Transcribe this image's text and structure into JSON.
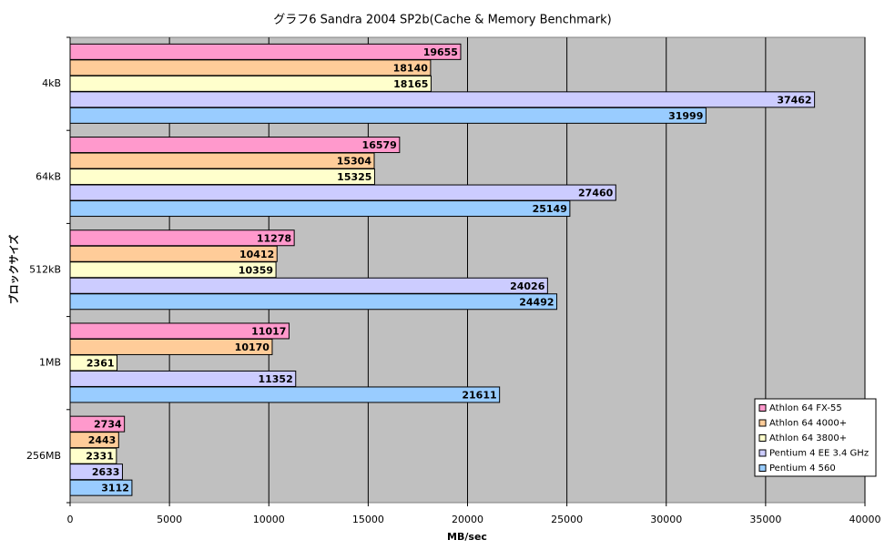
{
  "chart_data": {
    "type": "bar",
    "orientation": "horizontal",
    "title": "グラフ6  Sandra 2004 SP2b(Cache & Memory Benchmark)",
    "x_label": "MB/sec",
    "y_label": "ブロックサイズ",
    "categories": [
      "4kB",
      "64kB",
      "512kB",
      "1MB",
      "256MB"
    ],
    "series": [
      {
        "name": "Athlon 64 FX-55",
        "color": "#ff99cc",
        "values": [
          19655,
          16579,
          11278,
          11017,
          2734
        ]
      },
      {
        "name": "Athlon 64 4000+",
        "color": "#ffcc99",
        "values": [
          18140,
          15304,
          10412,
          10170,
          2443
        ]
      },
      {
        "name": "Athlon 64 3800+",
        "color": "#ffffcc",
        "values": [
          18165,
          15325,
          10359,
          2361,
          2331
        ]
      },
      {
        "name": "Pentium 4 EE 3.4 GHz",
        "color": "#ccccff",
        "values": [
          37462,
          27460,
          24026,
          11352,
          2633
        ]
      },
      {
        "name": "Pentium 4 560",
        "color": "#99ccff",
        "values": [
          31999,
          25149,
          24492,
          21611,
          3112
        ]
      }
    ],
    "xlim": [
      0,
      40000
    ],
    "xticks": [
      0,
      5000,
      10000,
      15000,
      20000,
      25000,
      30000,
      35000,
      40000
    ],
    "grid": true,
    "legend": "lower right"
  }
}
